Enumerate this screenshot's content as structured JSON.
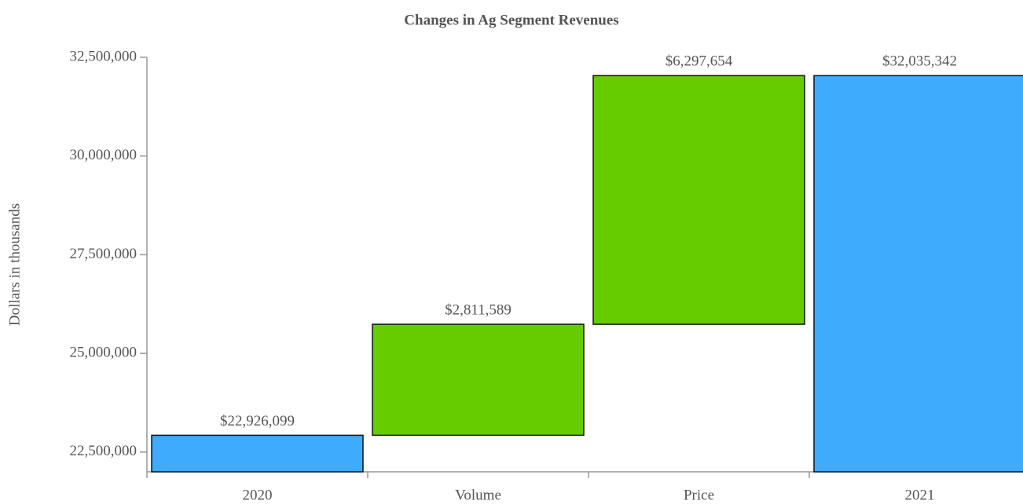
{
  "chart_data": {
    "type": "waterfall",
    "title": "Changes in Ag Segment Revenues",
    "y_label": "Dollars in thousands",
    "categories": [
      "2020",
      "Volume",
      "Price",
      "2021"
    ],
    "values": [
      22926099,
      2811589,
      6297654,
      32035342
    ],
    "value_labels": [
      "$22,926,099",
      "$2,811,589",
      "$6,297,654",
      "$32,035,342"
    ],
    "measures": [
      "total",
      "relative",
      "relative",
      "total"
    ],
    "colors": [
      "#3fabfd",
      "#66cc00",
      "#66cc00",
      "#3fabfd"
    ],
    "ylim": [
      22000000,
      32500000
    ],
    "yticks": [
      {
        "value": 22500000,
        "label": "22,500,000"
      },
      {
        "value": 25000000,
        "label": "25,000,000"
      },
      {
        "value": 27500000,
        "label": "27,500,000"
      },
      {
        "value": 30000000,
        "label": "30,000,000"
      },
      {
        "value": 32500000,
        "label": "32,500,000"
      }
    ]
  }
}
